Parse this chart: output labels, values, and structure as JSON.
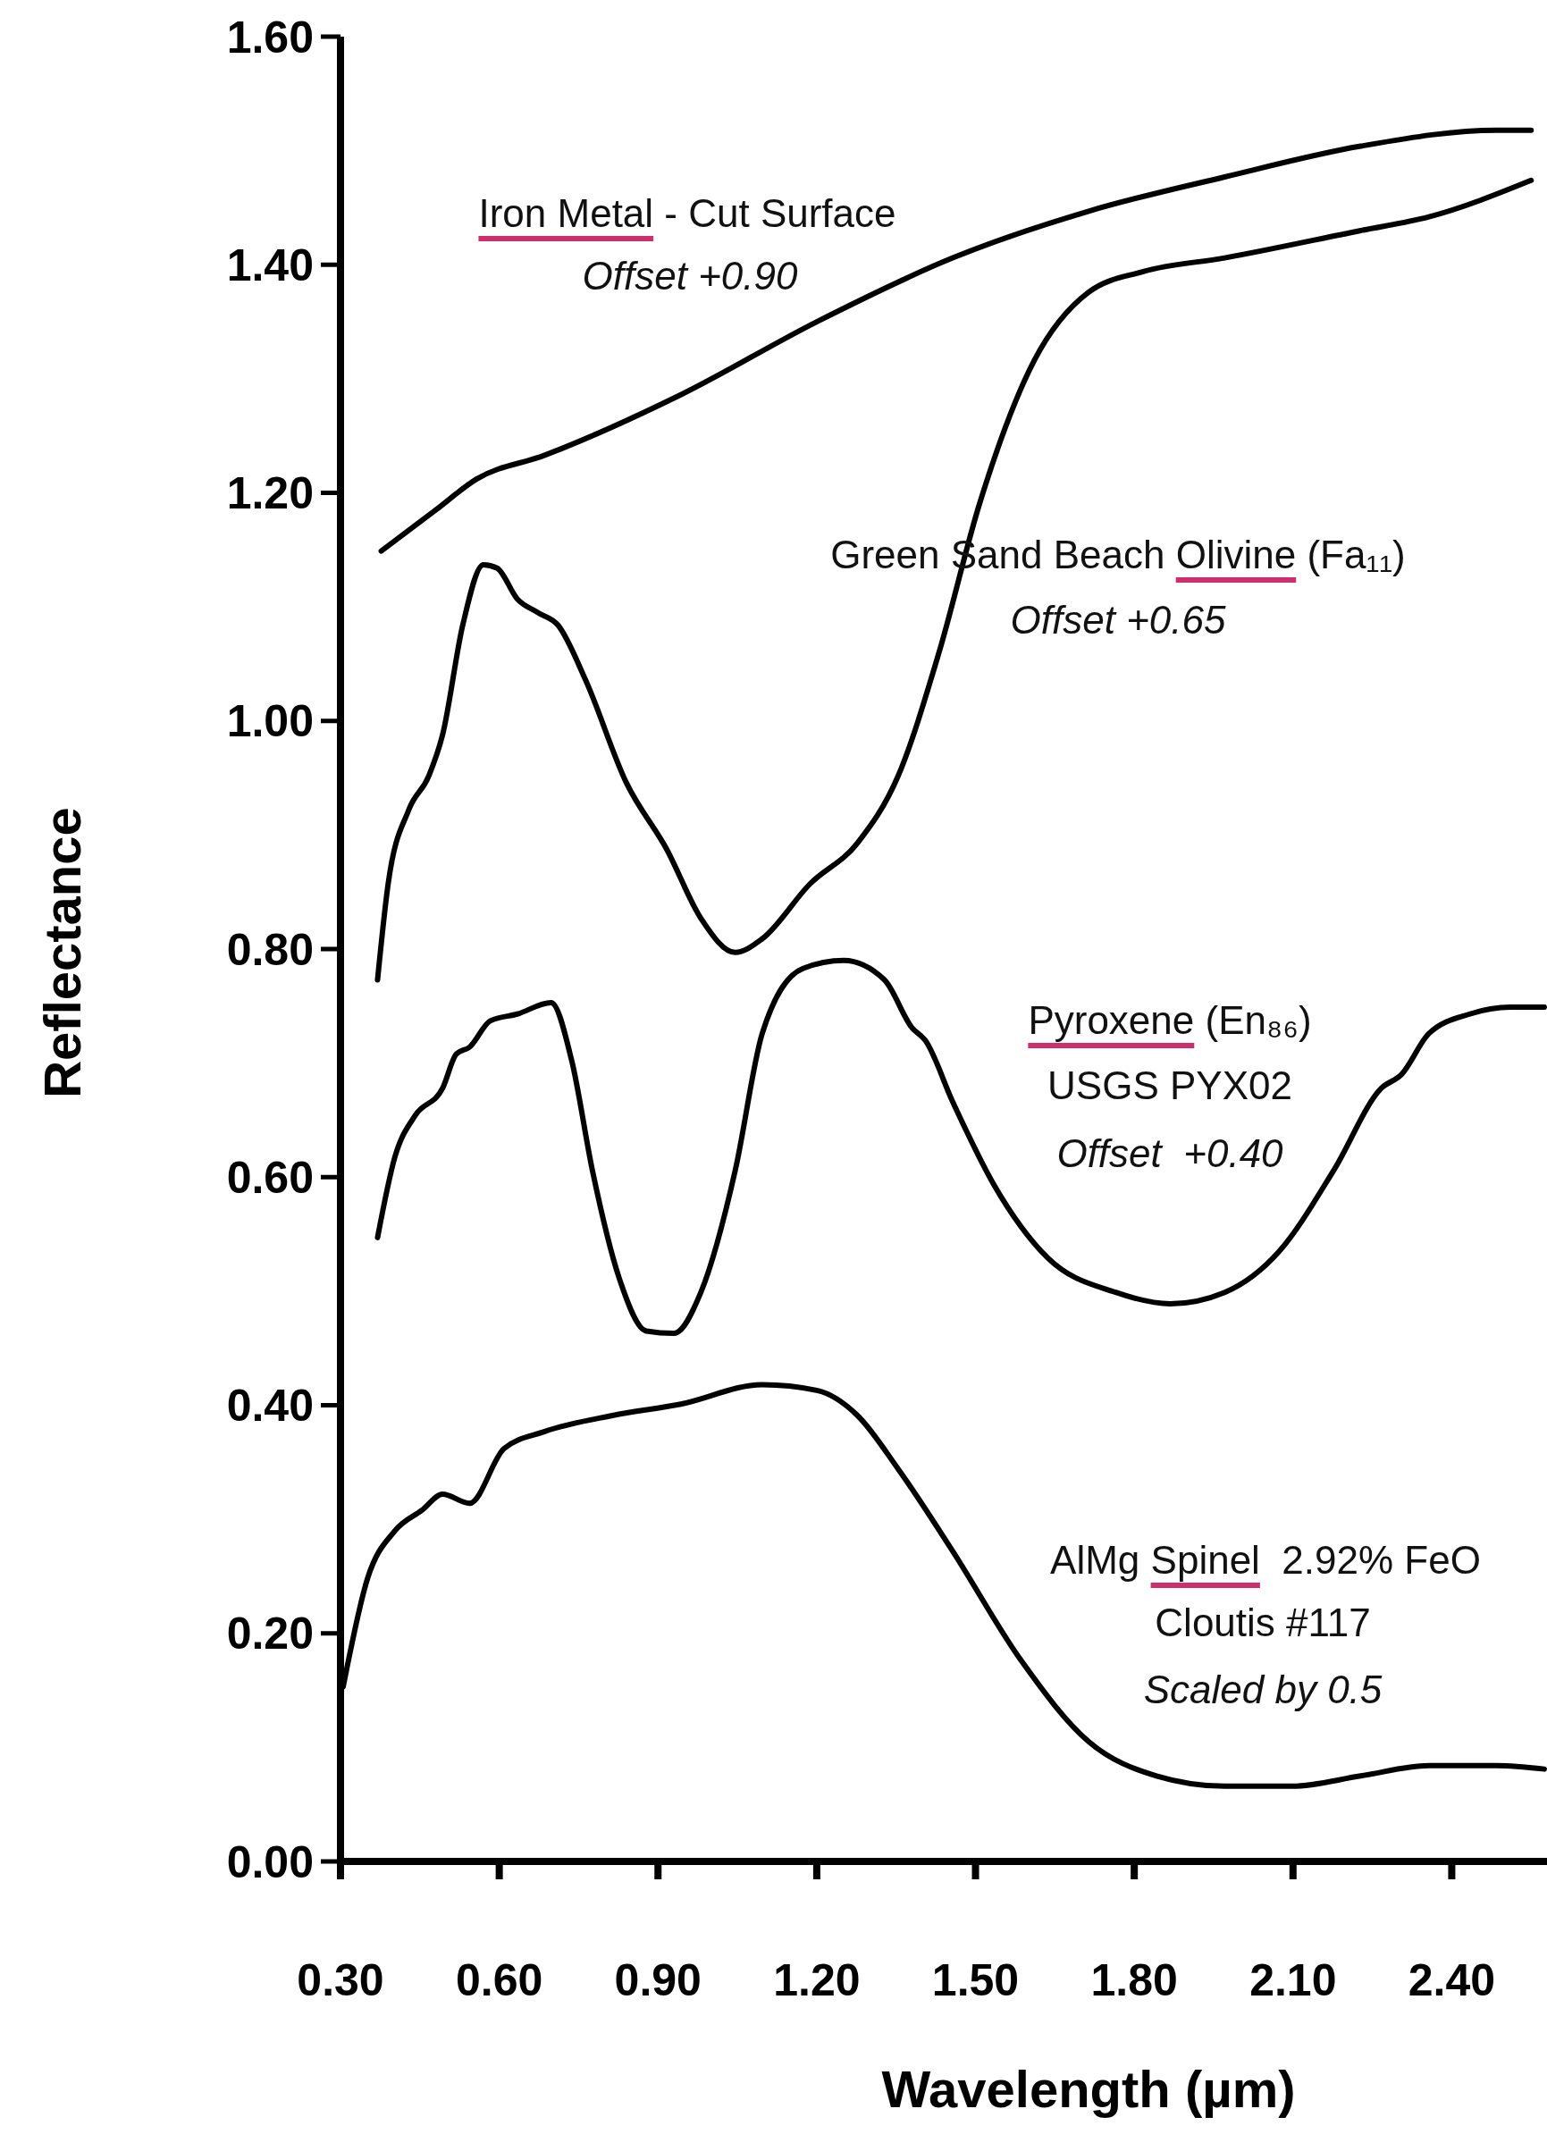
{
  "chart_data": {
    "type": "line",
    "xlabel": "Wavelength (µm)",
    "ylabel": "Reflectance",
    "xlim": [
      0.3,
      2.58
    ],
    "ylim": [
      0,
      1.6
    ],
    "xticks": [
      {
        "value": 0.3,
        "label": "0.30"
      },
      {
        "value": 0.6,
        "label": "0.60"
      },
      {
        "value": 0.9,
        "label": "0.90"
      },
      {
        "value": 1.2,
        "label": "1.20"
      },
      {
        "value": 1.5,
        "label": "1.50"
      },
      {
        "value": 1.8,
        "label": "1.80"
      },
      {
        "value": 2.1,
        "label": "2.10"
      },
      {
        "value": 2.4,
        "label": "2.40"
      }
    ],
    "yticks": [
      {
        "value": 0,
        "label": "0.00"
      },
      {
        "value": 0.2,
        "label": "0.20"
      },
      {
        "value": 0.4,
        "label": "0.40"
      },
      {
        "value": 0.6,
        "label": "0.60"
      },
      {
        "value": 0.8,
        "label": "0.80"
      },
      {
        "value": 1.0,
        "label": "1.00"
      },
      {
        "value": 1.2,
        "label": "1.20"
      },
      {
        "value": 1.4,
        "label": "1.40"
      },
      {
        "value": 1.6,
        "label": "1.60"
      }
    ],
    "marker": "none",
    "line_style": "solid",
    "series": [
      {
        "color": "#000000",
        "x": [
          0.377,
          0.48,
          0.557,
          0.686,
          0.943,
          1.2,
          1.457,
          1.714,
          1.971,
          2.228,
          2.485,
          2.55
        ],
        "values": [
          1.149,
          1.185,
          1.212,
          1.233,
          1.286,
          1.35,
          1.406,
          1.447,
          1.477,
          1.504,
          1.518,
          1.518
        ]
      },
      {
        "color": "#000000",
        "x": [
          0.37,
          0.39,
          0.429,
          0.467,
          0.493,
          0.531,
          0.57,
          0.596,
          0.634,
          0.673,
          0.711,
          0.763,
          0.84,
          0.917,
          0.981,
          1.046,
          1.097,
          1.187,
          1.277,
          1.354,
          1.431,
          1.508,
          1.611,
          1.714,
          1.817,
          1.971,
          2.228,
          2.357,
          2.55
        ],
        "values": [
          0.773,
          0.857,
          0.922,
          0.952,
          0.988,
          1.084,
          1.137,
          1.134,
          1.107,
          1.095,
          1.084,
          1.036,
          0.946,
          0.887,
          0.827,
          0.797,
          0.809,
          0.857,
          0.893,
          0.952,
          1.06,
          1.191,
          1.316,
          1.376,
          1.394,
          1.406,
          1.43,
          1.442,
          1.474
        ]
      },
      {
        "color": "#000000",
        "x": [
          0.37,
          0.403,
          0.441,
          0.493,
          0.519,
          0.544,
          0.583,
          0.634,
          0.698,
          0.737,
          0.776,
          0.827,
          0.878,
          0.93,
          0.981,
          1.046,
          1.097,
          1.174,
          1.251,
          1.328,
          1.38,
          1.405,
          1.457,
          1.534,
          1.637,
          1.765,
          1.868,
          1.971,
          2.074,
          2.177,
          2.267,
          2.305,
          2.357,
          2.434,
          2.511,
          2.575
        ],
        "values": [
          0.547,
          0.618,
          0.654,
          0.678,
          0.708,
          0.714,
          0.737,
          0.743,
          0.753,
          0.702,
          0.606,
          0.511,
          0.465,
          0.463,
          0.499,
          0.606,
          0.726,
          0.783,
          0.79,
          0.773,
          0.731,
          0.72,
          0.666,
          0.594,
          0.529,
          0.499,
          0.489,
          0.499,
          0.535,
          0.606,
          0.678,
          0.69,
          0.726,
          0.743,
          0.749,
          0.749
        ]
      },
      {
        "color": "#000000",
        "x": [
          0.305,
          0.351,
          0.403,
          0.454,
          0.493,
          0.544,
          0.609,
          0.686,
          0.814,
          0.943,
          1.097,
          1.2,
          1.277,
          1.354,
          1.457,
          1.585,
          1.714,
          1.842,
          1.971,
          2.099,
          2.228,
          2.357,
          2.485,
          2.575
        ],
        "values": [
          0.153,
          0.248,
          0.29,
          0.308,
          0.322,
          0.314,
          0.362,
          0.377,
          0.391,
          0.401,
          0.418,
          0.413,
          0.391,
          0.344,
          0.272,
          0.177,
          0.105,
          0.075,
          0.066,
          0.066,
          0.075,
          0.084,
          0.084,
          0.081
        ]
      }
    ],
    "annotations": [
      "Iron Metal - Cut Surface",
      "Offset +0.90",
      "Green Sand Beach Olivine (Fa₁₁)",
      "Offset +0.65",
      "Pyroxene (En₈₆)",
      "USGS PYX02",
      "Offset  +0.40",
      "AlMg Spinel  2.92% FeO",
      "Cloutis #117",
      "Scaled by 0.5"
    ]
  }
}
